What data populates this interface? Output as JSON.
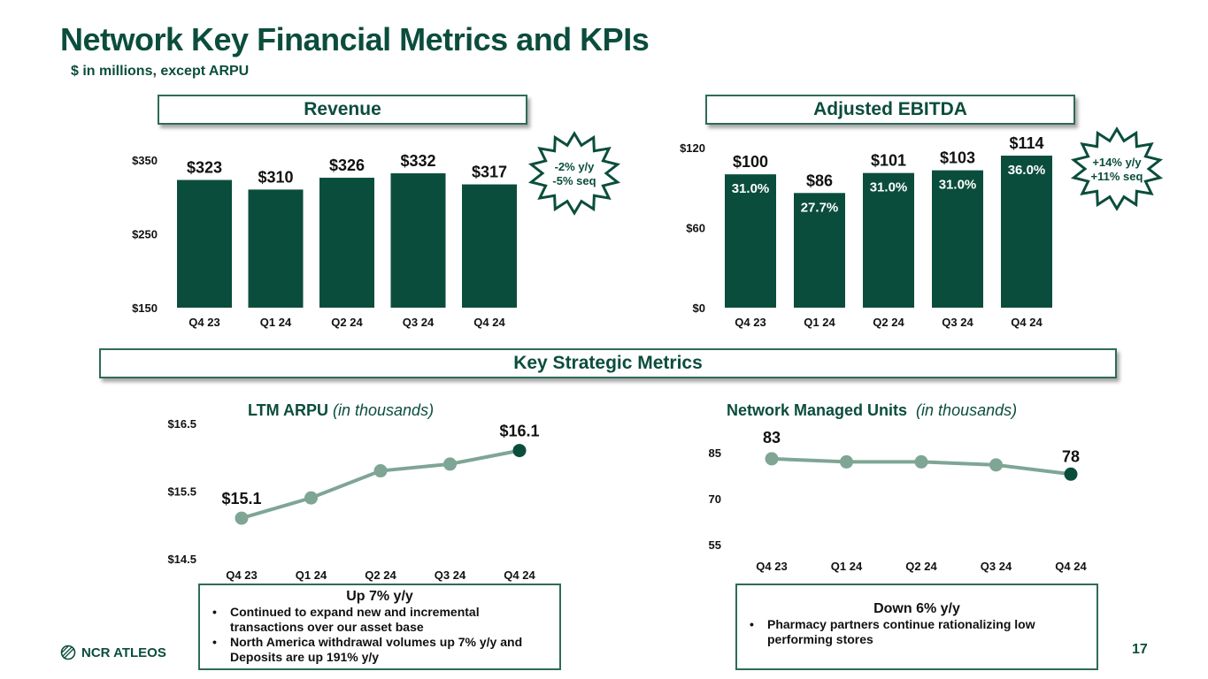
{
  "page": {
    "title": "Network Key Financial Metrics and KPIs",
    "subtitle": "$ in millions, except ARPU",
    "page_number": "17",
    "logo_text": "NCR ATLEOS"
  },
  "sections": {
    "revenue_header": "Revenue",
    "ebitda_header": "Adjusted EBITDA",
    "strategic_header": "Key Strategic Metrics"
  },
  "colors": {
    "brand_dark": "#0b4d3c",
    "line_light": "#7fa595",
    "border": "#2e6b59"
  },
  "chart_data": [
    {
      "id": "revenue",
      "type": "bar",
      "title": "Revenue",
      "categories": [
        "Q4 23",
        "Q1 24",
        "Q2 24",
        "Q3 24",
        "Q4 24"
      ],
      "values": [
        323,
        310,
        326,
        332,
        317
      ],
      "value_labels": [
        "$323",
        "$310",
        "$326",
        "$332",
        "$317"
      ],
      "yticks": [
        150,
        250,
        350
      ],
      "ytick_labels": [
        "$150",
        "$250",
        "$350"
      ],
      "ylim": [
        150,
        350
      ],
      "xlabel": "",
      "ylabel": "",
      "callout": [
        "-2% y/y",
        "-5% seq"
      ]
    },
    {
      "id": "ebitda",
      "type": "bar",
      "title": "Adjusted EBITDA",
      "categories": [
        "Q4 23",
        "Q1 24",
        "Q2 24",
        "Q3 24",
        "Q4 24"
      ],
      "values": [
        100,
        86,
        101,
        103,
        114
      ],
      "value_labels": [
        "$100",
        "$86",
        "$101",
        "$103",
        "$114"
      ],
      "margin_labels": [
        "31.0%",
        "27.7%",
        "31.0%",
        "31.0%",
        "36.0%"
      ],
      "yticks": [
        0,
        60,
        120
      ],
      "ytick_labels": [
        "$0",
        "$60",
        "$120"
      ],
      "ylim": [
        0,
        120
      ],
      "xlabel": "",
      "ylabel": "",
      "callout": [
        "+14% y/y",
        "+11% seq"
      ]
    },
    {
      "id": "arpu",
      "type": "line",
      "title": "LTM ARPU",
      "title_suffix": "(in thousands)",
      "categories": [
        "Q4 23",
        "Q1 24",
        "Q2 24",
        "Q3 24",
        "Q4 24"
      ],
      "values": [
        15.1,
        15.4,
        15.8,
        15.9,
        16.1
      ],
      "point_labels": [
        "$15.1",
        "",
        "",
        "",
        "$16.1"
      ],
      "yticks": [
        14.5,
        15.5,
        16.5
      ],
      "ytick_labels": [
        "$14.5",
        "$15.5",
        "$16.5"
      ],
      "ylim": [
        14.5,
        16.5
      ],
      "xlabel": "",
      "ylabel": ""
    },
    {
      "id": "nmu",
      "type": "line",
      "title": "Network Managed Units",
      "title_suffix": "(in thousands)",
      "categories": [
        "Q4 23",
        "Q1 24",
        "Q2 24",
        "Q3 24",
        "Q4 24"
      ],
      "values": [
        83,
        82,
        82,
        81,
        78
      ],
      "point_labels": [
        "83",
        "",
        "",
        "",
        "78"
      ],
      "yticks": [
        55,
        70,
        85
      ],
      "ytick_labels": [
        "55",
        "70",
        "85"
      ],
      "ylim": [
        55,
        85
      ],
      "xlabel": "",
      "ylabel": ""
    }
  ],
  "notes": {
    "arpu": {
      "headline": "Up 7% y/y",
      "bullets": [
        "Continued to expand new and incremental transactions over our asset base",
        "North America withdrawal volumes up 7% y/y and Deposits are up 191% y/y"
      ]
    },
    "nmu": {
      "headline": "Down 6% y/y",
      "bullets": [
        "Pharmacy partners continue rationalizing low performing stores"
      ]
    }
  }
}
